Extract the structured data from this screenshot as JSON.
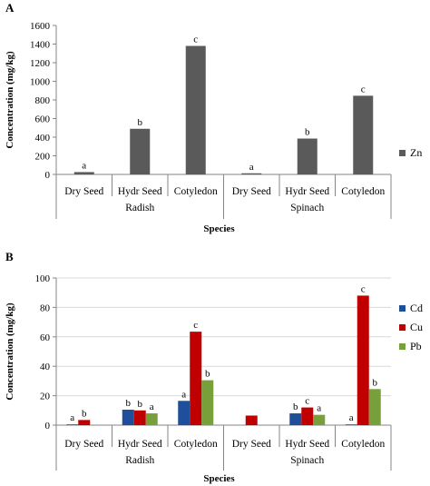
{
  "chart_data": [
    {
      "type": "bar",
      "panel_label": "A",
      "groups": [
        "Radish",
        "Spinach"
      ],
      "categories": [
        "Dry Seed",
        "Hydr Seed",
        "Cotyledon",
        "Dry Seed",
        "Hydr Seed",
        "Cotyledon"
      ],
      "xlabel": "Species",
      "ylabel": "Concentration (mg/kg)",
      "ylim": [
        0,
        1600
      ],
      "yticks": [
        "0",
        "200",
        "400",
        "600",
        "800",
        "1000",
        "1200",
        "1400",
        "1600"
      ],
      "grid": false,
      "legend_position": "right",
      "series": [
        {
          "name": "Zn",
          "color": "#5a5a5a",
          "values": [
            25,
            490,
            1380,
            12,
            385,
            845
          ],
          "labels": [
            "a",
            "b",
            "c",
            "a",
            "b",
            "c"
          ]
        }
      ]
    },
    {
      "type": "bar",
      "panel_label": "B",
      "groups": [
        "Radish",
        "Spinach"
      ],
      "categories": [
        "Dry Seed",
        "Hydr Seed",
        "Cotyledon",
        "Dry Seed",
        "Hydr Seed",
        "Cotyledon"
      ],
      "xlabel": "Species",
      "ylabel": "Concentration (mg/kg)",
      "ylim": [
        0,
        100
      ],
      "yticks": [
        "0",
        "20",
        "40",
        "60",
        "80",
        "100"
      ],
      "grid": true,
      "legend_position": "right",
      "series": [
        {
          "name": "Cd",
          "color": "#1f4e9a",
          "values": [
            0.5,
            10.5,
            16.5,
            0,
            8,
            0.5
          ],
          "labels": [
            "a",
            "b",
            "a",
            "",
            "b",
            "a"
          ]
        },
        {
          "name": "Cu",
          "color": "#c00000",
          "values": [
            3.5,
            10,
            63.5,
            6.5,
            12,
            88
          ],
          "labels": [
            "b",
            "b",
            "c",
            "",
            "c",
            "c"
          ]
        },
        {
          "name": "Pb",
          "color": "#77a03a",
          "values": [
            0,
            8,
            30.5,
            0,
            7,
            24.5
          ],
          "labels": [
            "",
            "a",
            "b",
            "",
            "a",
            "b"
          ]
        }
      ]
    }
  ]
}
